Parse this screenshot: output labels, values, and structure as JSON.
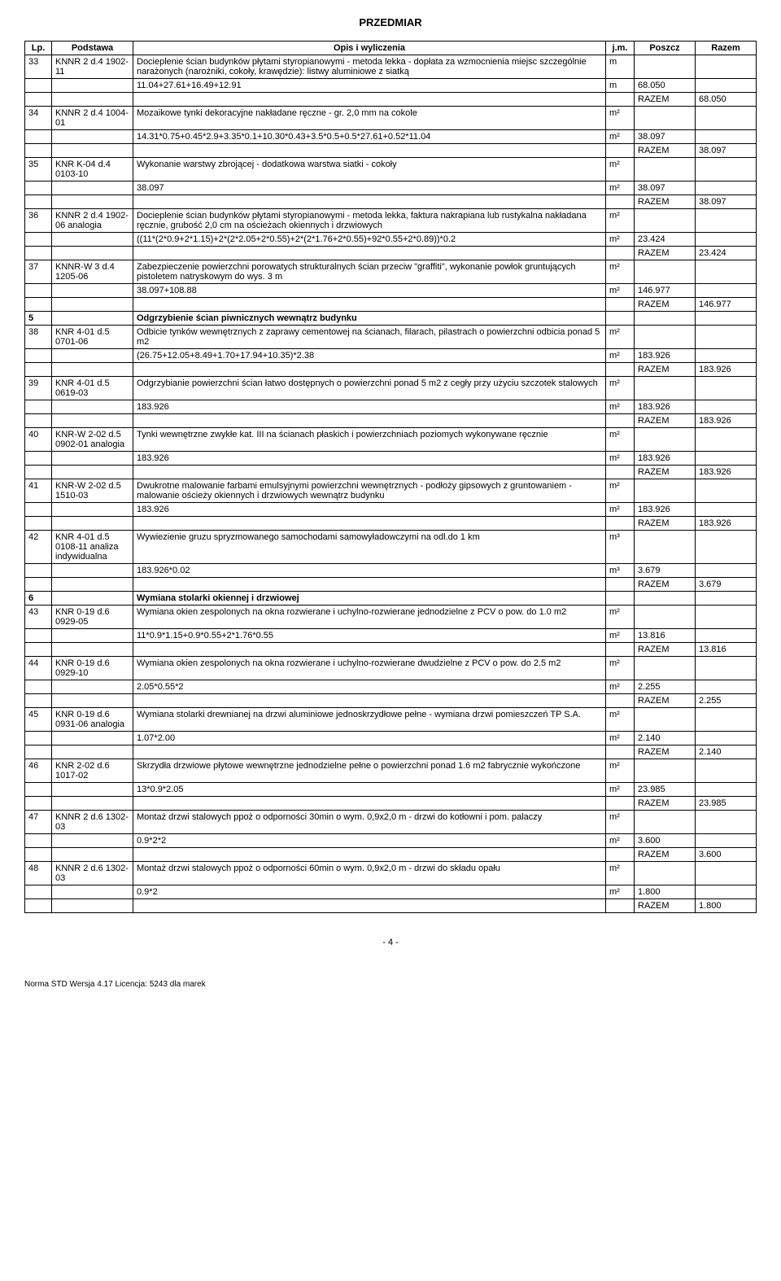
{
  "title": "PRZEDMIAR",
  "columns": [
    "Lp.",
    "Podstawa",
    "Opis i wyliczenia",
    "j.m.",
    "Poszcz",
    "Razem"
  ],
  "rows": [
    {
      "lp": "33",
      "pod": "KNNR 2 d.4 1902-11",
      "opis": "Docieplenie ścian budynków płytami styropianowymi - metoda lekka - dopłata za wzmocnienia miejsc szczególnie narażonych (narożniki, cokoły, krawędzie): listwy aluminiowe z siatką",
      "jm": "m",
      "poszcz": "",
      "razem": ""
    },
    {
      "lp": "",
      "pod": "",
      "opis": "11.04+27.61+16.49+12.91",
      "jm": "m",
      "poszcz": "68.050",
      "razem": ""
    },
    {
      "lp": "",
      "pod": "",
      "opis": "",
      "jm": "",
      "poszcz": "RAZEM",
      "razem": "68.050",
      "razemRow": true
    },
    {
      "lp": "34",
      "pod": "KNNR 2 d.4 1004-01",
      "opis": "Mozaikowe tynki dekoracyjne  nakładane ręczne - gr. 2,0 mm na cokole",
      "jm": "m2",
      "poszcz": "",
      "razem": ""
    },
    {
      "lp": "",
      "pod": "",
      "opis": "14.31*0.75+0.45*2.9+3.35*0.1+10.30*0.43+3.5*0.5+0.5*27.61+0.52*11.04",
      "jm": "m2",
      "poszcz": "38.097",
      "razem": ""
    },
    {
      "lp": "",
      "pod": "",
      "opis": "",
      "jm": "",
      "poszcz": "RAZEM",
      "razem": "38.097",
      "razemRow": true
    },
    {
      "lp": "35",
      "pod": "KNR K-04 d.4 0103-10",
      "opis": "Wykonanie warstwy zbrojącej - dodatkowa warstwa siatki - cokoły",
      "jm": "m2",
      "poszcz": "",
      "razem": ""
    },
    {
      "lp": "",
      "pod": "",
      "opis": "38.097",
      "jm": "m2",
      "poszcz": "38.097",
      "razem": ""
    },
    {
      "lp": "",
      "pod": "",
      "opis": "",
      "jm": "",
      "poszcz": "RAZEM",
      "razem": "38.097",
      "razemRow": true
    },
    {
      "lp": "36",
      "pod": "KNNR 2 d.4 1902-06 analogia",
      "opis": "Docieplenie ścian budynków płytami styropianowymi - metoda lekka, faktura nakrapiana lub rustykalna nakładana ręcznie, grubość 2,0 cm na ościeżach okiennych i drzwiowych",
      "jm": "m2",
      "poszcz": "",
      "razem": ""
    },
    {
      "lp": "",
      "pod": "",
      "opis": "((11*(2*0.9+2*1.15)+2*(2*2.05+2*0.55)+2*(2*1.76+2*0.55)+92*0.55+2*0.89))*0.2",
      "jm": "m2",
      "poszcz": "23.424",
      "razem": ""
    },
    {
      "lp": "",
      "pod": "",
      "opis": "",
      "jm": "",
      "poszcz": "RAZEM",
      "razem": "23.424",
      "razemRow": true
    },
    {
      "lp": "37",
      "pod": "KNNR-W 3 d.4 1205-06",
      "opis": "Zabezpieczenie powierzchni porowatych strukturalnych ścian przeciw \"graffiti\", wykonanie powłok gruntujących pistoletem natryskowym do wys. 3 m",
      "jm": "m2",
      "poszcz": "",
      "razem": ""
    },
    {
      "lp": "",
      "pod": "",
      "opis": "38.097+108.88",
      "jm": "m2",
      "poszcz": "146.977",
      "razem": ""
    },
    {
      "lp": "",
      "pod": "",
      "opis": "",
      "jm": "",
      "poszcz": "RAZEM",
      "razem": "146.977",
      "razemRow": true
    },
    {
      "lp": "5",
      "pod": "",
      "opis": "Odgrzybienie ścian piwnicznych wewnątrz budynku",
      "jm": "",
      "poszcz": "",
      "razem": "",
      "section": true
    },
    {
      "lp": "38",
      "pod": "KNR 4-01 d.5 0701-06",
      "opis": "Odbicie tynków wewnętrznych z zaprawy cementowej na ścianach, filarach, pilastrach o powierzchni odbicia ponad 5 m2",
      "jm": "m2",
      "poszcz": "",
      "razem": ""
    },
    {
      "lp": "",
      "pod": "",
      "opis": "(26.75+12.05+8.49+1.70+17.94+10.35)*2.38",
      "jm": "m2",
      "poszcz": "183.926",
      "razem": ""
    },
    {
      "lp": "",
      "pod": "",
      "opis": "",
      "jm": "",
      "poszcz": "RAZEM",
      "razem": "183.926",
      "razemRow": true
    },
    {
      "lp": "39",
      "pod": "KNR 4-01 d.5 0619-03",
      "opis": "Odgrzybianie powierzchni ścian łatwo dostępnych o powierzchni ponad 5 m2 z cegły przy użyciu szczotek stalowych",
      "jm": "m2",
      "poszcz": "",
      "razem": ""
    },
    {
      "lp": "",
      "pod": "",
      "opis": "183.926",
      "jm": "m2",
      "poszcz": "183.926",
      "razem": ""
    },
    {
      "lp": "",
      "pod": "",
      "opis": "",
      "jm": "",
      "poszcz": "RAZEM",
      "razem": "183.926",
      "razemRow": true
    },
    {
      "lp": "40",
      "pod": "KNR-W 2-02 d.5 0902-01 analogia",
      "opis": "Tynki wewnętrzne zwykłe kat. III na ścianach płaskich i powierzchniach poziomych  wykonywane ręcznie",
      "jm": "m2",
      "poszcz": "",
      "razem": ""
    },
    {
      "lp": "",
      "pod": "",
      "opis": "183.926",
      "jm": "m2",
      "poszcz": "183.926",
      "razem": ""
    },
    {
      "lp": "",
      "pod": "",
      "opis": "",
      "jm": "",
      "poszcz": "RAZEM",
      "razem": "183.926",
      "razemRow": true
    },
    {
      "lp": "41",
      "pod": "KNR-W 2-02 d.5 1510-03",
      "opis": "Dwukrotne malowanie farbami emulsyjnymi powierzchni wewnętrznych - podłoży gipsowych z gruntowaniem - malowanie ościeży okiennych i drzwiowych wewnątrz budynku",
      "jm": "m2",
      "poszcz": "",
      "razem": ""
    },
    {
      "lp": "",
      "pod": "",
      "opis": "183.926",
      "jm": "m2",
      "poszcz": "183.926",
      "razem": ""
    },
    {
      "lp": "",
      "pod": "",
      "opis": "",
      "jm": "",
      "poszcz": "RAZEM",
      "razem": "183.926",
      "razemRow": true
    },
    {
      "lp": "42",
      "pod": "KNR 4-01 d.5 0108-11 analiza indywidualna",
      "opis": "Wywiezienie gruzu spryzmowanego samochodami samowyładowczymi na odl.do 1 km",
      "jm": "m3",
      "poszcz": "",
      "razem": ""
    },
    {
      "lp": "",
      "pod": "",
      "opis": "183.926*0.02",
      "jm": "m3",
      "poszcz": "3.679",
      "razem": ""
    },
    {
      "lp": "",
      "pod": "",
      "opis": "",
      "jm": "",
      "poszcz": "RAZEM",
      "razem": "3.679",
      "razemRow": true
    },
    {
      "lp": "6",
      "pod": "",
      "opis": "Wymiana stolarki okiennej i drzwiowej",
      "jm": "",
      "poszcz": "",
      "razem": "",
      "section": true
    },
    {
      "lp": "43",
      "pod": "KNR 0-19 d.6 0929-05",
      "opis": "Wymiana okien zespolonych na okna rozwierane i uchylno-rozwierane jednodzielne z PCV o pow. do 1.0 m2",
      "jm": "m2",
      "poszcz": "",
      "razem": ""
    },
    {
      "lp": "",
      "pod": "",
      "opis": "11*0.9*1.15+0.9*0.55+2*1.76*0.55",
      "jm": "m2",
      "poszcz": "13.816",
      "razem": ""
    },
    {
      "lp": "",
      "pod": "",
      "opis": "",
      "jm": "",
      "poszcz": "RAZEM",
      "razem": "13.816",
      "razemRow": true
    },
    {
      "lp": "44",
      "pod": "KNR 0-19 d.6 0929-10",
      "opis": "Wymiana okien zespolonych na okna rozwierane i uchylno-rozwierane dwudzielne z PCV o pow. do 2.5 m2",
      "jm": "m2",
      "poszcz": "",
      "razem": ""
    },
    {
      "lp": "",
      "pod": "",
      "opis": "2.05*0.55*2",
      "jm": "m2",
      "poszcz": "2.255",
      "razem": ""
    },
    {
      "lp": "",
      "pod": "",
      "opis": "",
      "jm": "",
      "poszcz": "RAZEM",
      "razem": "2.255",
      "razemRow": true
    },
    {
      "lp": "45",
      "pod": "KNR 0-19 d.6 0931-06 analogia",
      "opis": "Wymiana stolarki drewnianej na drzwi aluminiowe jednoskrzydłowe pełne - wymiana drzwi pomieszczeń TP S.A.",
      "jm": "m2",
      "poszcz": "",
      "razem": ""
    },
    {
      "lp": "",
      "pod": "",
      "opis": "1.07*2.00",
      "jm": "m2",
      "poszcz": "2.140",
      "razem": ""
    },
    {
      "lp": "",
      "pod": "",
      "opis": "",
      "jm": "",
      "poszcz": "RAZEM",
      "razem": "2.140",
      "razemRow": true
    },
    {
      "lp": "46",
      "pod": "KNR 2-02 d.6 1017-02",
      "opis": "Skrzydła drzwiowe płytowe wewnętrzne jednodzielne pełne o powierzchni ponad 1.6 m2 fabrycznie wykończone",
      "jm": "m2",
      "poszcz": "",
      "razem": ""
    },
    {
      "lp": "",
      "pod": "",
      "opis": "13*0.9*2.05",
      "jm": "m2",
      "poszcz": "23.985",
      "razem": ""
    },
    {
      "lp": "",
      "pod": "",
      "opis": "",
      "jm": "",
      "poszcz": "RAZEM",
      "razem": "23.985",
      "razemRow": true
    },
    {
      "lp": "47",
      "pod": "KNNR 2 d.6 1302-03",
      "opis": "Montaż drzwi stalowych ppoż o odporności 30min o wym. 0,9x2,0 m - drzwi do kotłowni i pom. palaczy",
      "jm": "m2",
      "poszcz": "",
      "razem": ""
    },
    {
      "lp": "",
      "pod": "",
      "opis": "0.9*2*2",
      "jm": "m2",
      "poszcz": "3.600",
      "razem": ""
    },
    {
      "lp": "",
      "pod": "",
      "opis": "",
      "jm": "",
      "poszcz": "RAZEM",
      "razem": "3.600",
      "razemRow": true
    },
    {
      "lp": "48",
      "pod": "KNNR 2 d.6 1302-03",
      "opis": "Montaż drzwi stalowych ppoż o odporności 60min o wym. 0,9x2,0 m - drzwi do składu opału",
      "jm": "m2",
      "poszcz": "",
      "razem": ""
    },
    {
      "lp": "",
      "pod": "",
      "opis": "0.9*2",
      "jm": "m2",
      "poszcz": "1.800",
      "razem": ""
    },
    {
      "lp": "",
      "pod": "",
      "opis": "",
      "jm": "",
      "poszcz": "RAZEM",
      "razem": "1.800",
      "razemRow": true
    }
  ],
  "pageNumber": "- 4 -",
  "footer": "Norma STD Wersja 4.17 Licencja: 5243 dla marek"
}
